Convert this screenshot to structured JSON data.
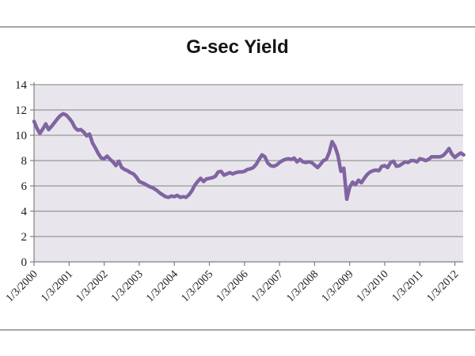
{
  "page": {
    "background": "#ffffff",
    "divider_color": "#a6a6a6"
  },
  "chart_data": {
    "type": "line",
    "title": "G-sec Yield",
    "xlabel": "",
    "ylabel": "",
    "legend": "none",
    "grid": "horizontal",
    "colors": {
      "line": "#8064A2",
      "plot_bg": "#E8E6EC",
      "grid_color": "#969696",
      "axis_color": "#808080",
      "label_color": "#1a1a1a"
    },
    "x": {
      "start": "1/3/2000",
      "frequency": "monthly",
      "tick_labels": [
        "1/3/2000",
        "1/3/2001",
        "1/3/2002",
        "1/3/2003",
        "1/3/2004",
        "1/3/2005",
        "1/3/2006",
        "1/3/2007",
        "1/3/2008",
        "1/3/2009",
        "1/3/2010",
        "1/3/2011",
        "1/3/2012"
      ]
    },
    "y": {
      "min": 0,
      "max": 14,
      "tick_step": 2,
      "tick_labels": [
        "0",
        "2",
        "4",
        "6",
        "8",
        "10",
        "12",
        "14"
      ]
    },
    "series": [
      {
        "name": "G-sec Yield",
        "values": [
          11.1,
          10.55,
          10.15,
          10.5,
          10.9,
          10.45,
          10.7,
          11.0,
          11.3,
          11.55,
          11.7,
          11.6,
          11.35,
          11.05,
          10.6,
          10.4,
          10.45,
          10.25,
          9.95,
          10.1,
          9.4,
          9.0,
          8.55,
          8.2,
          8.15,
          8.35,
          8.1,
          7.9,
          7.6,
          7.95,
          7.45,
          7.3,
          7.2,
          7.05,
          6.95,
          6.7,
          6.35,
          6.25,
          6.15,
          6.0,
          5.9,
          5.8,
          5.65,
          5.45,
          5.3,
          5.15,
          5.1,
          5.2,
          5.15,
          5.25,
          5.1,
          5.15,
          5.1,
          5.3,
          5.6,
          6.05,
          6.35,
          6.6,
          6.35,
          6.55,
          6.6,
          6.65,
          6.75,
          7.1,
          7.15,
          6.85,
          6.95,
          7.05,
          6.95,
          7.05,
          7.1,
          7.1,
          7.15,
          7.3,
          7.35,
          7.45,
          7.7,
          8.1,
          8.45,
          8.3,
          7.8,
          7.6,
          7.55,
          7.65,
          7.85,
          8.0,
          8.1,
          8.15,
          8.1,
          8.2,
          7.9,
          8.1,
          7.9,
          7.85,
          7.9,
          7.85,
          7.65,
          7.45,
          7.7,
          8.0,
          8.1,
          8.65,
          9.5,
          9.1,
          8.4,
          7.15,
          7.4,
          4.95,
          5.9,
          6.3,
          6.1,
          6.45,
          6.25,
          6.6,
          6.9,
          7.1,
          7.2,
          7.25,
          7.2,
          7.55,
          7.6,
          7.45,
          7.85,
          7.95,
          7.55,
          7.6,
          7.75,
          7.9,
          7.85,
          8.0,
          8.0,
          7.9,
          8.15,
          8.1,
          8.0,
          8.1,
          8.3,
          8.3,
          8.3,
          8.3,
          8.4,
          8.65,
          8.95,
          8.5,
          8.25,
          8.45,
          8.6,
          8.45
        ]
      }
    ]
  }
}
